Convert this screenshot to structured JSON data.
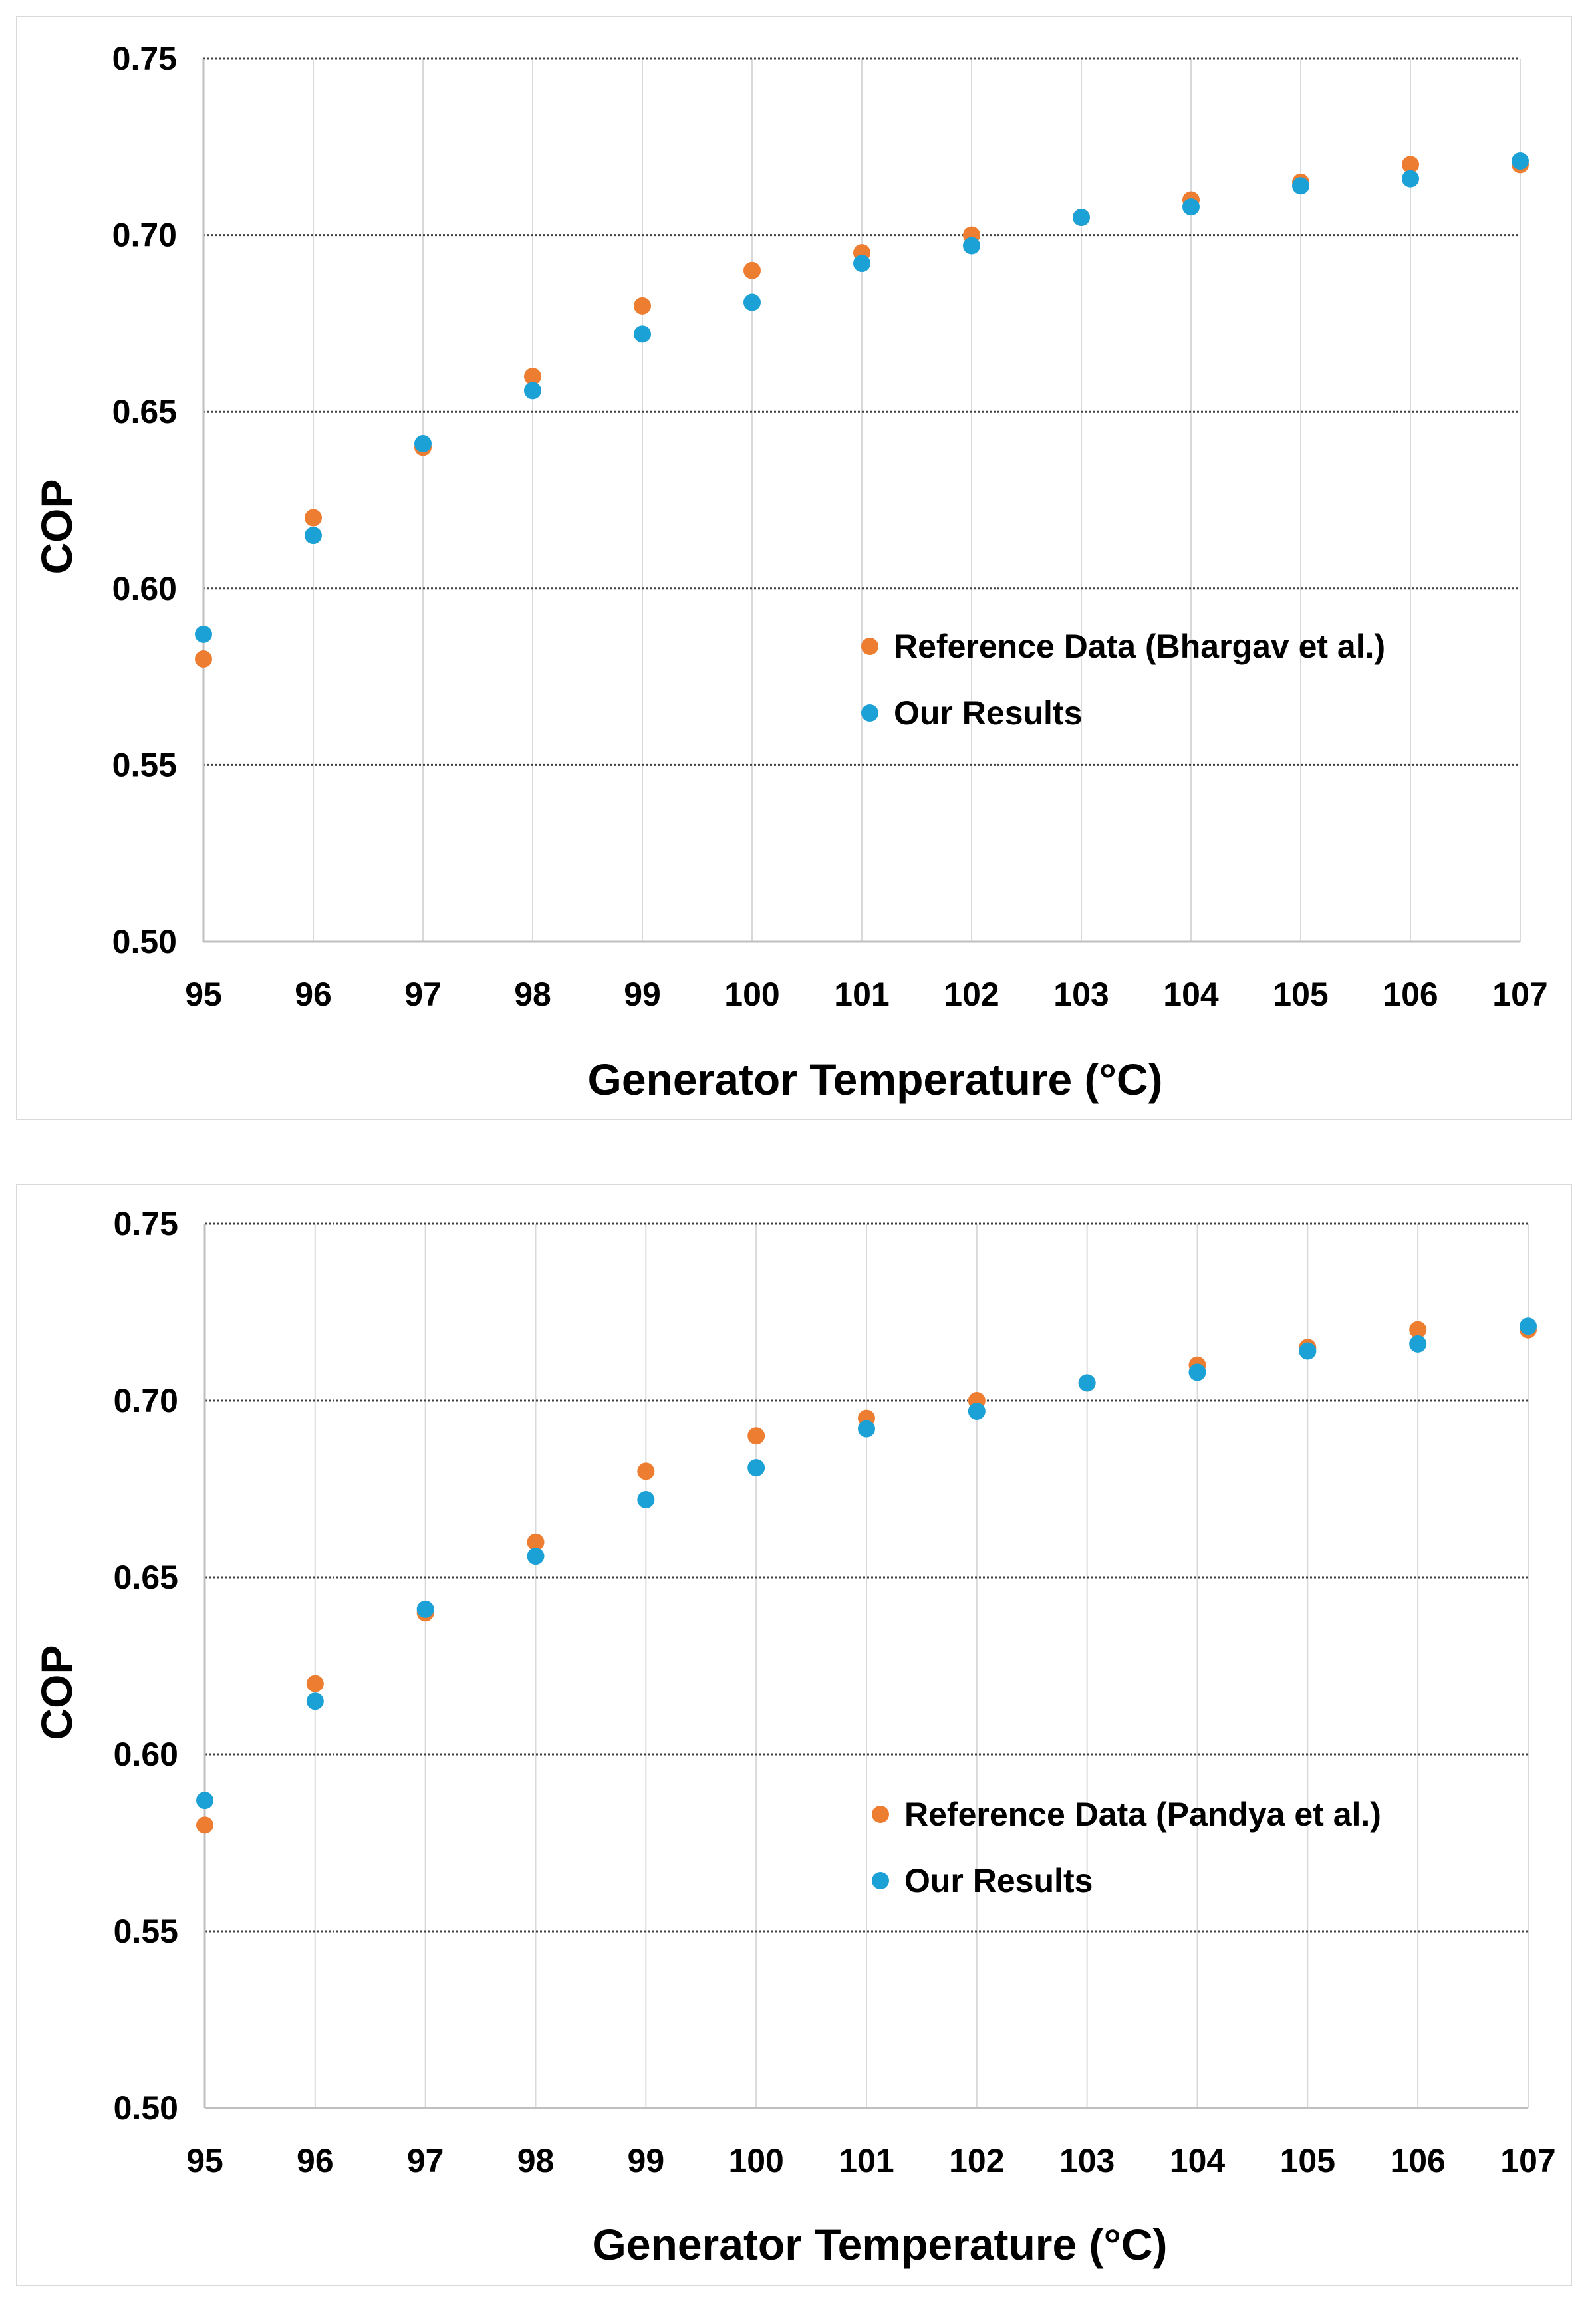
{
  "chart_data": [
    {
      "type": "scatter",
      "title": "",
      "xlabel": "Generator Temperature (°C)",
      "ylabel": "COP",
      "xlim": [
        95,
        107
      ],
      "ylim": [
        0.5,
        0.75
      ],
      "x_ticks": [
        "95",
        "96",
        "97",
        "98",
        "99",
        "100",
        "101",
        "102",
        "103",
        "104",
        "105",
        "106",
        "107"
      ],
      "y_ticks": [
        "0.50",
        "0.55",
        "0.60",
        "0.65",
        "0.70",
        "0.75"
      ],
      "grid": true,
      "legend_position": "center-right",
      "series": [
        {
          "name": "Reference Data (Bhargav et al.)",
          "color": "#ed7d31",
          "x": [
            95,
            96,
            97,
            98,
            99,
            100,
            101,
            102,
            103,
            104,
            105,
            106,
            107
          ],
          "y": [
            0.58,
            0.62,
            0.64,
            0.66,
            0.68,
            0.69,
            0.695,
            0.7,
            0.705,
            0.71,
            0.715,
            0.72,
            0.72
          ]
        },
        {
          "name": "Our Results",
          "color": "#1ba1d6",
          "x": [
            95,
            96,
            97,
            98,
            99,
            100,
            101,
            102,
            103,
            104,
            105,
            106,
            107
          ],
          "y": [
            0.587,
            0.615,
            0.641,
            0.656,
            0.672,
            0.681,
            0.692,
            0.697,
            0.705,
            0.708,
            0.714,
            0.716,
            0.721
          ]
        }
      ]
    },
    {
      "type": "scatter",
      "title": "",
      "xlabel": "Generator Temperature (°C)",
      "ylabel": "COP",
      "xlim": [
        95,
        107
      ],
      "ylim": [
        0.5,
        0.75
      ],
      "x_ticks": [
        "95",
        "96",
        "97",
        "98",
        "99",
        "100",
        "101",
        "102",
        "103",
        "104",
        "105",
        "106",
        "107"
      ],
      "y_ticks": [
        "0.50",
        "0.55",
        "0.60",
        "0.65",
        "0.70",
        "0.75"
      ],
      "grid": true,
      "legend_position": "center-right",
      "series": [
        {
          "name": "Reference Data (Pandya et al.)",
          "color": "#ed7d31",
          "x": [
            95,
            96,
            97,
            98,
            99,
            100,
            101,
            102,
            103,
            104,
            105,
            106,
            107
          ],
          "y": [
            0.58,
            0.62,
            0.64,
            0.66,
            0.68,
            0.69,
            0.695,
            0.7,
            0.705,
            0.71,
            0.715,
            0.72,
            0.72
          ]
        },
        {
          "name": "Our Results",
          "color": "#1ba1d6",
          "x": [
            95,
            96,
            97,
            98,
            99,
            100,
            101,
            102,
            103,
            104,
            105,
            106,
            107
          ],
          "y": [
            0.587,
            0.615,
            0.641,
            0.656,
            0.672,
            0.681,
            0.692,
            0.697,
            0.705,
            0.708,
            0.714,
            0.716,
            0.721
          ]
        }
      ]
    }
  ]
}
